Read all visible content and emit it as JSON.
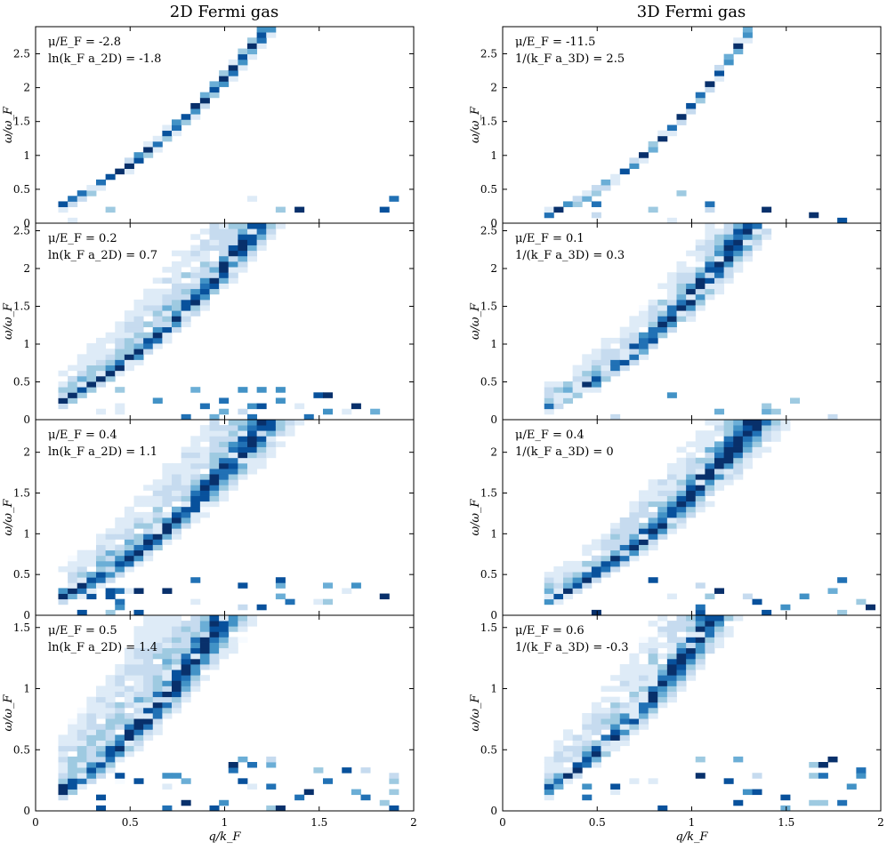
{
  "figure": {
    "colormap": [
      "#f7fbff",
      "#deebf7",
      "#c6dbef",
      "#9ecae1",
      "#6baed6",
      "#4292c6",
      "#2171b5",
      "#08519c",
      "#08306b"
    ],
    "columns": [
      {
        "title": "2D Fermi gas"
      },
      {
        "title": "3D Fermi gas"
      }
    ]
  },
  "chart_data": [
    {
      "type": "heatmap",
      "column": 0,
      "row": 0,
      "ann1": "μ/E_F = -2.8",
      "ann2": "ln(k_F a_2D) = -1.8",
      "xlim": [
        0,
        2
      ],
      "ylim": [
        0,
        2.9
      ],
      "yticks": [
        0,
        0.5,
        1,
        1.5,
        2,
        2.5
      ],
      "ytick_labels": [
        "0",
        "0.5",
        "1",
        "1.5",
        "2",
        "2.5"
      ],
      "ylabel": "ω/ω_F",
      "xlabel": "",
      "xticks": [],
      "xtick_labels": [],
      "q_range": [
        0.12,
        1.95
      ],
      "branch": [
        0.1,
        1.04,
        1.0
      ],
      "width": 0.05,
      "spread": 0.12,
      "upper": 0.0,
      "low_scatter": 0.25
    },
    {
      "type": "heatmap",
      "column": 0,
      "row": 1,
      "ann1": "μ/E_F = 0.2",
      "ann2": "ln(k_F a_2D) = 0.7",
      "xlim": [
        0,
        2
      ],
      "ylim": [
        0,
        2.6
      ],
      "yticks": [
        0,
        0.5,
        1,
        1.5,
        2,
        2.5
      ],
      "ytick_labels": [
        "0",
        "0.5",
        "1",
        "1.5",
        "2",
        "2.5"
      ],
      "ylabel": "ω/ω_F",
      "xlabel": "",
      "xticks": [],
      "xtick_labels": [],
      "q_range": [
        0.12,
        1.95
      ],
      "branch": [
        0.1,
        0.95,
        0.97
      ],
      "width": 0.06,
      "spread": 0.35,
      "upper": 0.85,
      "low_scatter": 0.55
    },
    {
      "type": "heatmap",
      "column": 0,
      "row": 2,
      "ann1": "μ/E_F = 0.4",
      "ann2": "ln(k_F a_2D) = 1.1",
      "xlim": [
        0,
        2
      ],
      "ylim": [
        0,
        2.4
      ],
      "yticks": [
        0,
        0.5,
        1,
        1.5,
        2
      ],
      "ytick_labels": [
        "0",
        "0.5",
        "1",
        "1.5",
        "2"
      ],
      "ylabel": "ω/ω_F",
      "xlabel": "",
      "xticks": [],
      "xtick_labels": [],
      "q_range": [
        0.12,
        1.95
      ],
      "branch": [
        0.1,
        0.78,
        0.9
      ],
      "width": 0.06,
      "spread": 0.45,
      "upper": 0.8,
      "low_scatter": 0.5
    },
    {
      "type": "heatmap",
      "column": 0,
      "row": 3,
      "ann1": "μ/E_F = 0.5",
      "ann2": "ln(k_F a_2D) = 1.4",
      "xlim": [
        0,
        2
      ],
      "ylim": [
        0,
        1.6
      ],
      "yticks": [
        0,
        0.5,
        1,
        1.5
      ],
      "ytick_labels": [
        "0",
        "0.5",
        "1",
        "1.5"
      ],
      "ylabel": "ω/ω_F",
      "xlabel": "q/k_F",
      "xticks": [
        0,
        0.5,
        1,
        1.5,
        2
      ],
      "xtick_labels": [
        "0",
        "0.5",
        "1",
        "1.5",
        "2"
      ],
      "q_range": [
        0.12,
        1.95
      ],
      "branch": [
        0.05,
        0.72,
        0.85
      ],
      "width": 0.06,
      "spread": 0.5,
      "upper": 1.0,
      "low_scatter": 0.7
    },
    {
      "type": "heatmap",
      "column": 1,
      "row": 0,
      "ann1": "μ/E_F = -11.5",
      "ann2": "1/(k_F a_3D) = 2.5",
      "xlim": [
        0,
        2
      ],
      "ylim": [
        0,
        2.9
      ],
      "yticks": [
        0,
        0.5,
        1,
        1.5,
        2,
        2.5
      ],
      "ytick_labels": [
        "0",
        "0.5",
        "1",
        "1.5",
        "2",
        "2.5"
      ],
      "ylabel": "ω/ω_F",
      "xlabel": "",
      "xticks": [],
      "xtick_labels": [],
      "q_range": [
        0.22,
        1.98
      ],
      "branch": [
        0.0,
        0.22,
        1.5
      ],
      "width": 0.035,
      "spread": 0.05,
      "upper": 0.0,
      "low_scatter": 0.35
    },
    {
      "type": "heatmap",
      "column": 1,
      "row": 1,
      "ann1": "μ/E_F = 0.1",
      "ann2": "1/(k_F a_3D) = 0.3",
      "xlim": [
        0,
        2
      ],
      "ylim": [
        0,
        2.6
      ],
      "yticks": [
        0,
        0.5,
        1,
        1.5,
        2,
        2.5
      ],
      "ytick_labels": [
        "0",
        "0.5",
        "1",
        "1.5",
        "2",
        "2.5"
      ],
      "ylabel": "ω/ω_F",
      "xlabel": "",
      "xticks": [],
      "xtick_labels": [],
      "q_range": [
        0.22,
        1.98
      ],
      "branch": [
        0.0,
        0.55,
        1.1
      ],
      "width": 0.05,
      "spread": 0.4,
      "upper": 0.5,
      "low_scatter": 0.35
    },
    {
      "type": "heatmap",
      "column": 1,
      "row": 2,
      "ann1": "μ/E_F = 0.4",
      "ann2": "1/(k_F a_3D) = 0",
      "xlim": [
        0,
        2
      ],
      "ylim": [
        0,
        2.4
      ],
      "yticks": [
        0,
        0.5,
        1,
        1.5,
        2
      ],
      "ytick_labels": [
        "0",
        "0.5",
        "1",
        "1.5",
        "2"
      ],
      "ylabel": "ω/ω_F",
      "xlabel": "",
      "xticks": [],
      "xtick_labels": [],
      "q_range": [
        0.22,
        1.98
      ],
      "branch": [
        0.0,
        0.65,
        0.85
      ],
      "width": 0.05,
      "spread": 0.4,
      "upper": 0.55,
      "low_scatter": 0.35
    },
    {
      "type": "heatmap",
      "column": 1,
      "row": 3,
      "ann1": "μ/E_F = 0.6",
      "ann2": "1/(k_F a_3D) = -0.3",
      "xlim": [
        0,
        2
      ],
      "ylim": [
        0,
        1.6
      ],
      "yticks": [
        0,
        0.5,
        1,
        1.5
      ],
      "ytick_labels": [
        "0",
        "0.5",
        "1",
        "1.5"
      ],
      "ylabel": "ω/ω_F",
      "xlabel": "q/k_F",
      "xticks": [
        0,
        0.5,
        1,
        1.5,
        2
      ],
      "xtick_labels": [
        "0",
        "0.5",
        "1",
        "1.5",
        "2"
      ],
      "q_range": [
        0.22,
        1.98
      ],
      "branch": [
        0.0,
        0.6,
        0.75
      ],
      "width": 0.04,
      "spread": 0.35,
      "upper": 0.55,
      "low_scatter": 0.45
    }
  ]
}
